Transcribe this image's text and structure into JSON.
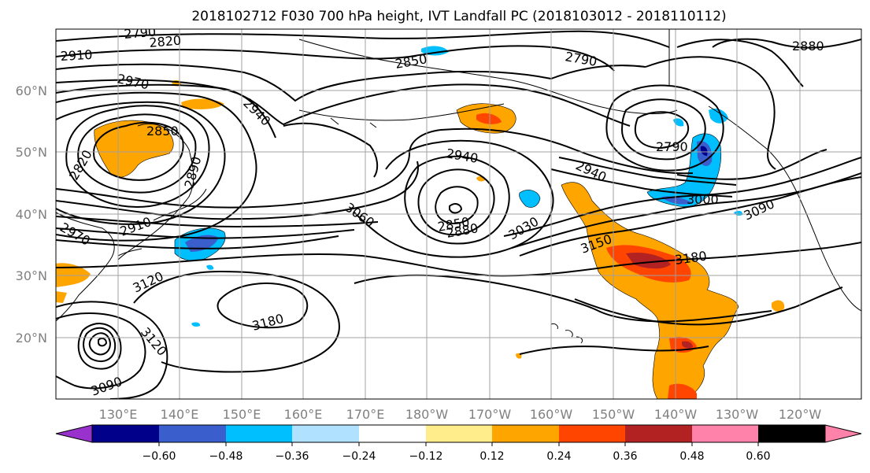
{
  "title": "2018102712 F030 700 hPa height, IVT Landfall PC (2018103012 - 2018110112)",
  "lat_labels": [
    "20°N",
    "30°N",
    "40°N",
    "50°N",
    "60°N"
  ],
  "lon_labels": [
    "130°E",
    "140°E",
    "150°E",
    "160°E",
    "170°E",
    "180°W",
    "170°W",
    "160°W",
    "150°W",
    "140°W",
    "130°W",
    "120°W"
  ],
  "colorbar": {
    "colors": [
      "#9932cc",
      "#00008b",
      "#3a5fcd",
      "#00bfff",
      "#b0e2ff",
      "#ffffff",
      "#ffec8b",
      "#ffa500",
      "#ff4500",
      "#b22222",
      "#ff82ab"
    ],
    "tick_labels": [
      "−0.60",
      "−0.48",
      "−0.36",
      "−0.24",
      "−0.12",
      "0.12",
      "0.24",
      "0.36",
      "0.48",
      "0.60"
    ]
  },
  "contour_labels": [
    "2790",
    "2820",
    "2910",
    "2970",
    "2850",
    "2940",
    "2790",
    "2880",
    "2850",
    "2940",
    "2790",
    "2820",
    "2890",
    "2940",
    "3000",
    "3060",
    "2850",
    "2880",
    "3030",
    "3090",
    "2910",
    "2970",
    "3150",
    "3180",
    "3120",
    "3180",
    "3120",
    "3090"
  ]
}
